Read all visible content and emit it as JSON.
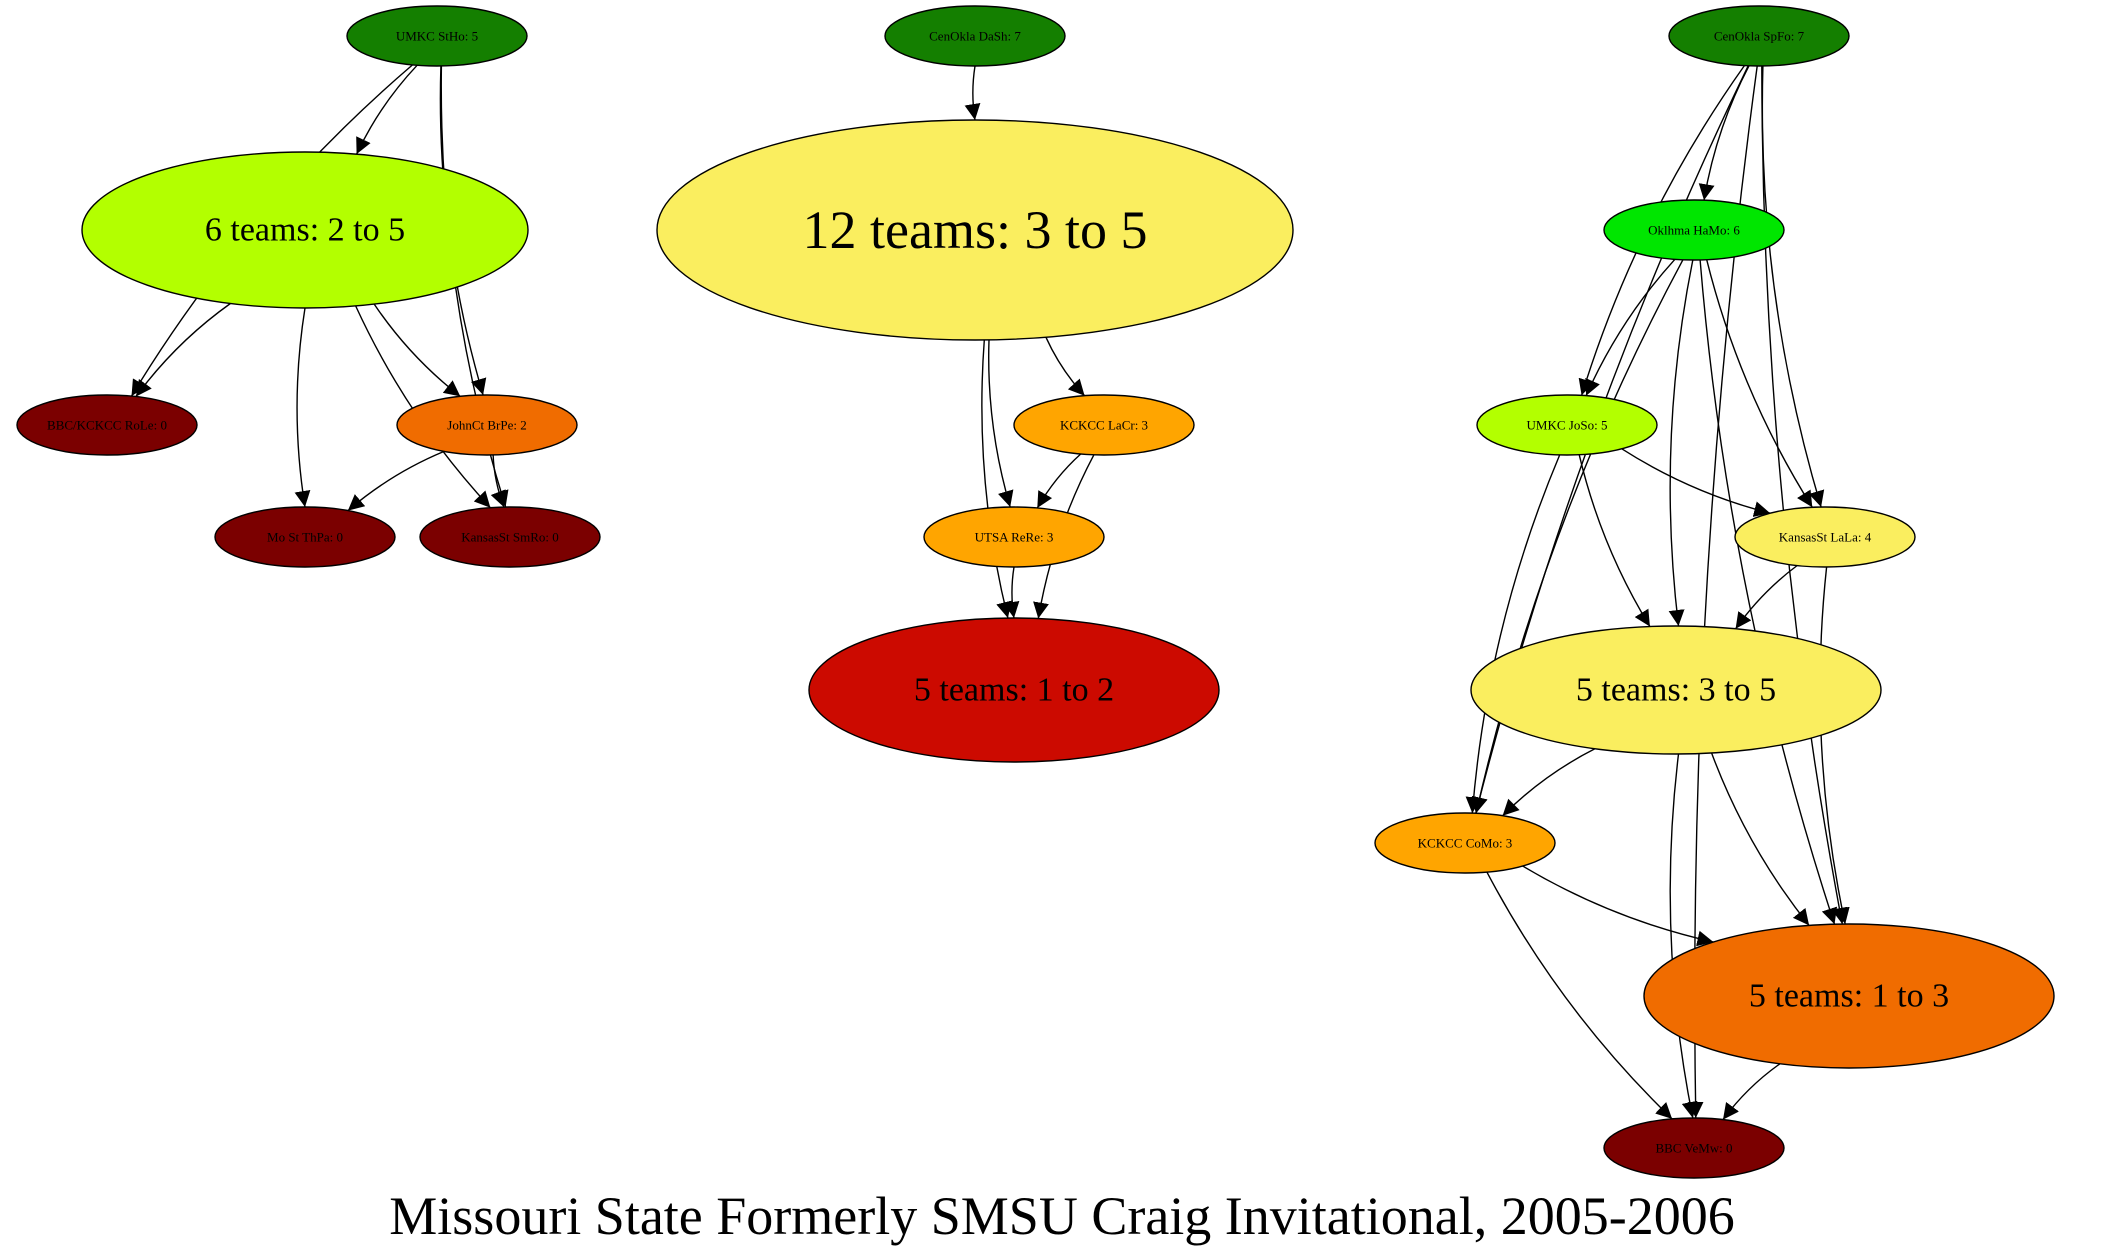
{
  "title": "Missouri State Formerly SMSU Craig Invitational, 2005-2006",
  "colors": {
    "dark_green": "#147F00",
    "bright_green": "#00E600",
    "yellow_green": "#B3FF00",
    "yellow": "#FAEE5F",
    "amber": "#FFA500",
    "orange": "#F06C00",
    "red": "#CC0A00",
    "dark_red": "#7B0000"
  },
  "nodes": [
    {
      "id": "umkc_stho",
      "label": "UMKC StHo: 5",
      "color": "dark_green",
      "size": "small"
    },
    {
      "id": "six_teams",
      "label": "6 teams: 2 to 5",
      "color": "yellow_green",
      "size": "medium"
    },
    {
      "id": "bbc_role",
      "label": "BBC/KCKCC RoLe: 0",
      "color": "dark_red",
      "size": "small"
    },
    {
      "id": "johnct_brpe",
      "label": "JohnCt BrPe: 2",
      "color": "orange",
      "size": "small"
    },
    {
      "id": "most_thpa",
      "label": "Mo St ThPa: 0",
      "color": "dark_red",
      "size": "small"
    },
    {
      "id": "kansasst_smro",
      "label": "KansasSt SmRo: 0",
      "color": "dark_red",
      "size": "small"
    },
    {
      "id": "cenokla_dash",
      "label": "CenOkla DaSh: 7",
      "color": "dark_green",
      "size": "small"
    },
    {
      "id": "twelve_teams",
      "label": "12 teams: 3 to 5",
      "color": "yellow",
      "size": "large"
    },
    {
      "id": "kckcc_lacr",
      "label": "KCKCC LaCr: 3",
      "color": "amber",
      "size": "small"
    },
    {
      "id": "utsa_rere",
      "label": "UTSA ReRe: 3",
      "color": "amber",
      "size": "small"
    },
    {
      "id": "five_teams_1_2",
      "label": "5 teams: 1 to 2",
      "color": "red",
      "size": "medium"
    },
    {
      "id": "cenokla_spfo",
      "label": "CenOkla SpFo: 7",
      "color": "dark_green",
      "size": "small"
    },
    {
      "id": "oklhma_hamo",
      "label": "Oklhma HaMo: 6",
      "color": "bright_green",
      "size": "small"
    },
    {
      "id": "umkc_joso",
      "label": "UMKC JoSo: 5",
      "color": "yellow_green",
      "size": "small"
    },
    {
      "id": "kansasst_lala",
      "label": "KansasSt LaLa: 4",
      "color": "yellow",
      "size": "small"
    },
    {
      "id": "five_teams_3_5",
      "label": "5 teams: 3 to 5",
      "color": "yellow",
      "size": "medium"
    },
    {
      "id": "kckcc_como",
      "label": "KCKCC CoMo: 3",
      "color": "amber",
      "size": "small"
    },
    {
      "id": "five_teams_1_3",
      "label": "5 teams: 1 to 3",
      "color": "orange",
      "size": "medium"
    },
    {
      "id": "bbc_vemw",
      "label": "BBC VeMw: 0",
      "color": "dark_red",
      "size": "small"
    }
  ],
  "edges": [
    {
      "from": "umkc_stho",
      "to": "six_teams"
    },
    {
      "from": "umkc_stho",
      "to": "bbc_role"
    },
    {
      "from": "umkc_stho",
      "to": "johnct_brpe"
    },
    {
      "from": "umkc_stho",
      "to": "kansasst_smro"
    },
    {
      "from": "six_teams",
      "to": "bbc_role"
    },
    {
      "from": "six_teams",
      "to": "johnct_brpe"
    },
    {
      "from": "six_teams",
      "to": "most_thpa"
    },
    {
      "from": "six_teams",
      "to": "kansasst_smro"
    },
    {
      "from": "johnct_brpe",
      "to": "most_thpa"
    },
    {
      "from": "johnct_brpe",
      "to": "kansasst_smro"
    },
    {
      "from": "cenokla_dash",
      "to": "twelve_teams"
    },
    {
      "from": "twelve_teams",
      "to": "kckcc_lacr"
    },
    {
      "from": "twelve_teams",
      "to": "utsa_rere"
    },
    {
      "from": "twelve_teams",
      "to": "five_teams_1_2"
    },
    {
      "from": "kckcc_lacr",
      "to": "utsa_rere"
    },
    {
      "from": "kckcc_lacr",
      "to": "five_teams_1_2"
    },
    {
      "from": "utsa_rere",
      "to": "five_teams_1_2"
    },
    {
      "from": "cenokla_spfo",
      "to": "oklhma_hamo"
    },
    {
      "from": "cenokla_spfo",
      "to": "umkc_joso"
    },
    {
      "from": "cenokla_spfo",
      "to": "kansasst_lala"
    },
    {
      "from": "cenokla_spfo",
      "to": "kckcc_como"
    },
    {
      "from": "cenokla_spfo",
      "to": "five_teams_1_3"
    },
    {
      "from": "cenokla_spfo",
      "to": "bbc_vemw"
    },
    {
      "from": "oklhma_hamo",
      "to": "umkc_joso"
    },
    {
      "from": "oklhma_hamo",
      "to": "kansasst_lala"
    },
    {
      "from": "oklhma_hamo",
      "to": "five_teams_3_5"
    },
    {
      "from": "oklhma_hamo",
      "to": "kckcc_como"
    },
    {
      "from": "oklhma_hamo",
      "to": "five_teams_1_3"
    },
    {
      "from": "umkc_joso",
      "to": "kansasst_lala"
    },
    {
      "from": "umkc_joso",
      "to": "five_teams_3_5"
    },
    {
      "from": "umkc_joso",
      "to": "kckcc_como"
    },
    {
      "from": "kansasst_lala",
      "to": "five_teams_3_5"
    },
    {
      "from": "kansasst_lala",
      "to": "five_teams_1_3"
    },
    {
      "from": "five_teams_3_5",
      "to": "kckcc_como"
    },
    {
      "from": "five_teams_3_5",
      "to": "five_teams_1_3"
    },
    {
      "from": "five_teams_3_5",
      "to": "bbc_vemw"
    },
    {
      "from": "kckcc_como",
      "to": "five_teams_1_3"
    },
    {
      "from": "kckcc_como",
      "to": "bbc_vemw"
    },
    {
      "from": "five_teams_1_3",
      "to": "bbc_vemw"
    }
  ]
}
